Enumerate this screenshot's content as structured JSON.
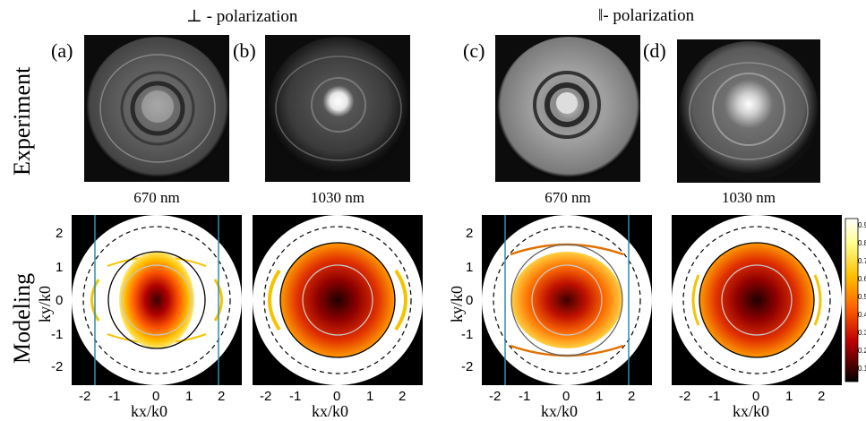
{
  "headings": {
    "perp": "⊥ - polarization",
    "par": "‖- polarization"
  },
  "row_labels": {
    "experiment": "Experiment",
    "modeling": "Modeling"
  },
  "panels": [
    {
      "letter": "(a)",
      "wavelength": "670 nm"
    },
    {
      "letter": "(b)",
      "wavelength": "1030 nm"
    },
    {
      "letter": "(c)",
      "wavelength": "670 nm"
    },
    {
      "letter": "(d)",
      "wavelength": "1030 nm"
    }
  ],
  "axes": {
    "xlabel": "kx/k0",
    "ylabel": "ky/k0",
    "xticks": [
      "-2",
      "-1",
      "0",
      "1",
      "2"
    ],
    "yticks": [
      "2",
      "1",
      "0",
      "-1",
      "-2"
    ]
  },
  "colorbar_ticks": [
    "0.9",
    "0.8",
    "0.7",
    "0.6",
    "0.5",
    "0.4",
    "0.3",
    "0.2",
    "0.1"
  ]
}
